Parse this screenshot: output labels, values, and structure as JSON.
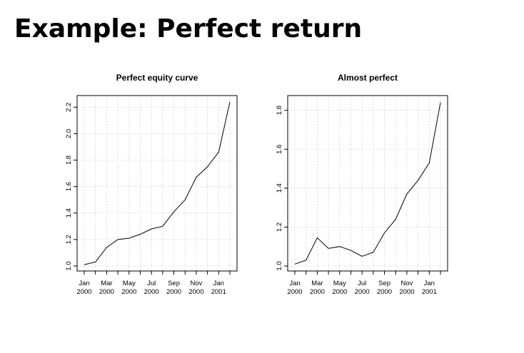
{
  "slide": {
    "title": "Example: Perfect return"
  },
  "chart_data": [
    {
      "type": "line",
      "title": "Perfect equity curve",
      "xlabel": "",
      "ylabel": "",
      "x": [
        "Jan 2000",
        "Feb 2000",
        "Mar 2000",
        "Apr 2000",
        "May 2000",
        "Jun 2000",
        "Jul 2000",
        "Aug 2000",
        "Sep 2000",
        "Oct 2000",
        "Nov 2000",
        "Dec 2000",
        "Jan 2001",
        "Feb 2001"
      ],
      "values": [
        1.01,
        1.03,
        1.14,
        1.2,
        1.21,
        1.24,
        1.28,
        1.3,
        1.41,
        1.5,
        1.67,
        1.75,
        1.86,
        2.24
      ],
      "ylim": [
        1.0,
        2.25
      ],
      "y_ticks": [
        "1.0",
        "1.2",
        "1.4",
        "1.6",
        "1.8",
        "2.0",
        "2.2"
      ],
      "x_tick_labels": [
        {
          "month": "Jan",
          "year": "2000"
        },
        {
          "month": "Mar",
          "year": "2000"
        },
        {
          "month": "May",
          "year": "2000"
        },
        {
          "month": "Jul",
          "year": "2000"
        },
        {
          "month": "Sep",
          "year": "2000"
        },
        {
          "month": "Nov",
          "year": "2000"
        },
        {
          "month": "Jan",
          "year": "2001"
        }
      ],
      "grid": true
    },
    {
      "type": "line",
      "title": "Almost perfect",
      "xlabel": "",
      "ylabel": "",
      "x": [
        "Jan 2000",
        "Feb 2000",
        "Mar 2000",
        "Apr 2000",
        "May 2000",
        "Jun 2000",
        "Jul 2000",
        "Aug 2000",
        "Sep 2000",
        "Oct 2000",
        "Nov 2000",
        "Dec 2000",
        "Jan 2001",
        "Feb 2001"
      ],
      "values": [
        1.01,
        1.03,
        1.145,
        1.09,
        1.1,
        1.08,
        1.05,
        1.07,
        1.17,
        1.24,
        1.37,
        1.44,
        1.53,
        1.84
      ],
      "ylim": [
        1.0,
        1.85
      ],
      "y_ticks": [
        "1.0",
        "1.2",
        "1.4",
        "1.6",
        "1.8"
      ],
      "x_tick_labels": [
        {
          "month": "Jan",
          "year": "2000"
        },
        {
          "month": "Mar",
          "year": "2000"
        },
        {
          "month": "May",
          "year": "2000"
        },
        {
          "month": "Jul",
          "year": "2000"
        },
        {
          "month": "Sep",
          "year": "2000"
        },
        {
          "month": "Nov",
          "year": "2000"
        },
        {
          "month": "Jan",
          "year": "2001"
        }
      ],
      "grid": true
    }
  ]
}
